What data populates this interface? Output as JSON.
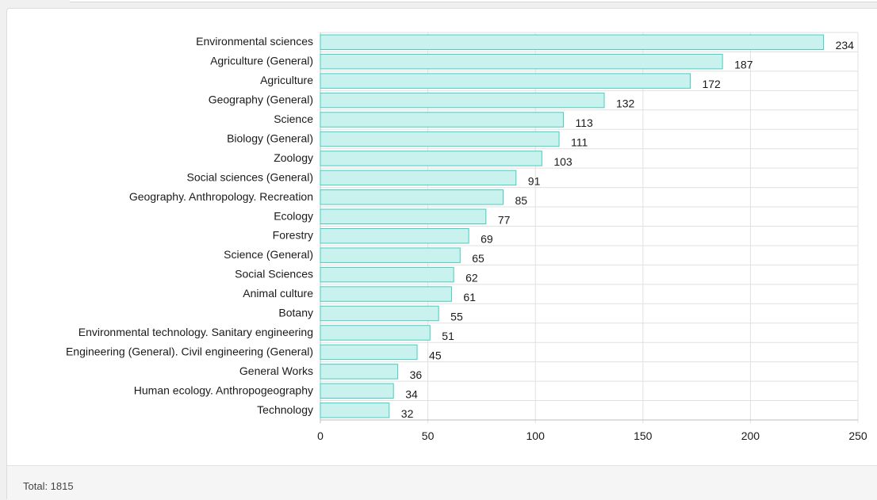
{
  "colors": {
    "bar_fill": "#c9f2ee",
    "bar_stroke": "#3fd0c0",
    "grid": "#e0e0e0"
  },
  "footer": {
    "total_label": "Total: 1815"
  },
  "chart_data": {
    "type": "bar",
    "orientation": "horizontal",
    "categories": [
      "Environmental sciences",
      "Agriculture (General)",
      "Agriculture",
      "Geography (General)",
      "Science",
      "Biology (General)",
      "Zoology",
      "Social sciences (General)",
      "Geography. Anthropology. Recreation",
      "Ecology",
      "Forestry",
      "Science (General)",
      "Social Sciences",
      "Animal culture",
      "Botany",
      "Environmental technology. Sanitary engineering",
      "Engineering (General). Civil engineering (General)",
      "General Works",
      "Human ecology. Anthropogeography",
      "Technology"
    ],
    "values": [
      234,
      187,
      172,
      132,
      113,
      111,
      103,
      91,
      85,
      77,
      69,
      65,
      62,
      61,
      55,
      51,
      45,
      36,
      34,
      32
    ],
    "xlim": [
      0,
      250
    ],
    "xticks": [
      0,
      50,
      100,
      150,
      200,
      250
    ],
    "grid": true,
    "show_value_labels": true,
    "legend": "none"
  }
}
